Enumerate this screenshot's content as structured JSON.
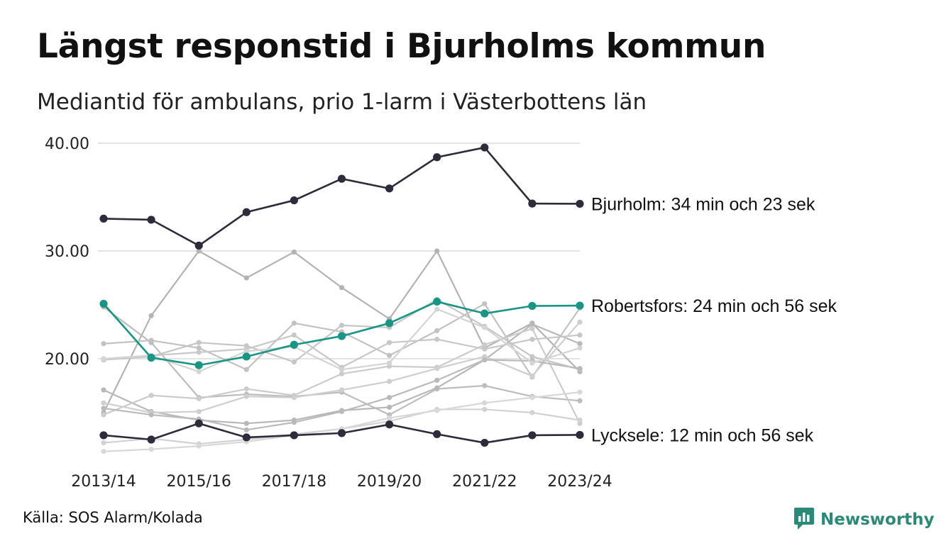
{
  "title": "Längst responstid i Bjurholms kommun",
  "subtitle": "Mediantid för ambulans, prio 1-larm i Västerbottens län",
  "source": "Källa: SOS Alarm/Kolada",
  "brand": {
    "name": "Newsworthy",
    "icon": "newsworthy-logo-icon",
    "color": "#2a8a77"
  },
  "chart_data": {
    "type": "line",
    "x": [
      "2013/14",
      "2014/15",
      "2015/16",
      "2016/17",
      "2017/18",
      "2018/19",
      "2019/20",
      "2020/21",
      "2021/22",
      "2022/23",
      "2023/24"
    ],
    "x_tick_labels": [
      "2013/14",
      "2015/16",
      "2017/18",
      "2019/20",
      "2021/22",
      "2023/24"
    ],
    "y_ticks": [
      "40.00",
      "30.00",
      "20.00"
    ],
    "ylim": [
      10.6,
      41.0
    ],
    "grid": true,
    "colors": {
      "highlight_dark": "#2c2c3a",
      "highlight_teal": "#1a9484",
      "background_lines": "#bbbbbb"
    },
    "highlighted": [
      {
        "name": "Bjurholm",
        "label": "Bjurholm: 34 min och 23 sek",
        "color": "#2c2c3a",
        "values": [
          33.0,
          32.9,
          30.5,
          33.6,
          34.7,
          36.7,
          35.8,
          38.7,
          39.6,
          34.4,
          34.38
        ]
      },
      {
        "name": "Robertsfors",
        "label": "Robertsfors: 24 min och 56 sek",
        "color": "#1a9484",
        "values": [
          25.1,
          20.1,
          19.4,
          20.2,
          21.3,
          22.1,
          23.3,
          25.3,
          24.2,
          24.9,
          24.93
        ]
      },
      {
        "name": "Lycksele",
        "label": "Lycksele: 12 min och 56 sek",
        "color": "#2c2c3a",
        "values": [
          12.9,
          12.5,
          14.0,
          12.7,
          12.9,
          13.1,
          13.9,
          13.0,
          12.2,
          12.9,
          12.93
        ]
      }
    ],
    "background_series": [
      {
        "values": [
          15.0,
          24.0,
          30.0,
          27.5,
          29.9,
          26.6,
          23.7,
          30.0,
          21.0,
          23.3,
          18.8
        ]
      },
      {
        "values": [
          24.8,
          21.5,
          16.4,
          16.7,
          16.5,
          16.9,
          14.8,
          17.2,
          17.5,
          16.5,
          16.1
        ]
      },
      {
        "values": [
          19.9,
          20.2,
          21.5,
          21.2,
          19.7,
          23.1,
          22.9,
          25.5,
          23.0,
          20.2,
          19.0
        ]
      },
      {
        "values": [
          17.1,
          15.1,
          14.3,
          14.0,
          14.3,
          15.2,
          15.5,
          17.3,
          19.9,
          23.2,
          21.4
        ]
      },
      {
        "values": [
          14.8,
          16.6,
          16.3,
          17.2,
          16.6,
          18.6,
          19.3,
          19.2,
          21.3,
          22.8,
          14.0
        ]
      },
      {
        "values": [
          21.4,
          21.7,
          21.0,
          19.0,
          23.3,
          22.5,
          20.3,
          22.6,
          25.1,
          18.3,
          24.7
        ]
      },
      {
        "values": [
          12.2,
          12.6,
          12.1,
          12.5,
          13.0,
          13.5,
          14.2,
          15.3,
          15.3,
          15.0,
          14.3
        ]
      },
      {
        "values": [
          11.4,
          11.6,
          11.9,
          12.3,
          12.9,
          13.5,
          14.5,
          15.2,
          15.9,
          16.4,
          16.9
        ]
      },
      {
        "values": [
          20.0,
          20.3,
          20.6,
          20.9,
          22.2,
          19.2,
          21.5,
          21.8,
          20.9,
          21.8,
          22.2
        ]
      },
      {
        "values": [
          15.9,
          15.0,
          15.1,
          16.5,
          16.4,
          17.1,
          17.9,
          19.1,
          20.2,
          18.4,
          23.4
        ]
      },
      {
        "values": [
          15.4,
          14.8,
          14.4,
          13.4,
          14.1,
          15.1,
          16.4,
          18.0,
          19.9,
          19.8,
          19.1
        ]
      },
      {
        "values": [
          20.0,
          20.3,
          18.8,
          20.7,
          21.1,
          19.0,
          19.6,
          24.6,
          22.9,
          19.6,
          21.0
        ]
      }
    ]
  }
}
